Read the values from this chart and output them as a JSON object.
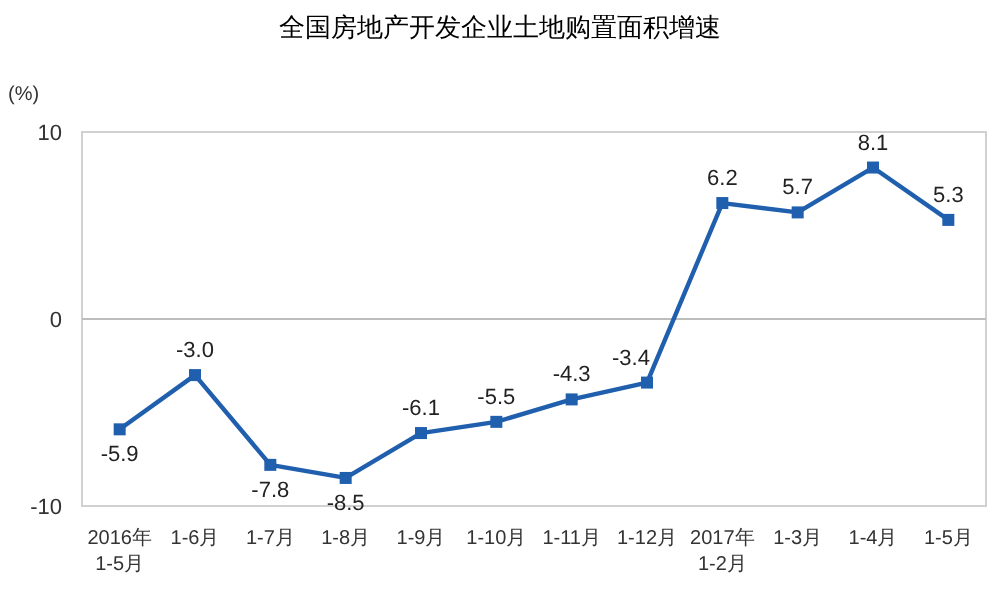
{
  "chart_data": {
    "type": "line",
    "title": "全国房地产开发企业土地购置面积增速",
    "ylabel": "(%)",
    "categories": [
      "2016年\n1-5月",
      "1-6月",
      "1-7月",
      "1-8月",
      "1-9月",
      "1-10月",
      "1-11月",
      "1-12月",
      "2017年\n1-2月",
      "1-3月",
      "1-4月",
      "1-5月"
    ],
    "series": [
      {
        "color": "#1f5fad",
        "values": [
          -5.9,
          -3.0,
          -7.8,
          -8.5,
          -6.1,
          -5.5,
          -4.3,
          -3.4,
          6.2,
          5.7,
          8.1,
          5.3
        ],
        "value_labels": [
          "-5.9",
          "-3.0",
          "-7.8",
          "-8.5",
          "-6.1",
          "-5.5",
          "-4.3",
          "-3.4",
          "6.2",
          "5.7",
          "8.1",
          "5.3"
        ]
      }
    ],
    "ylim": [
      -10,
      10
    ],
    "yticks": [
      -10,
      0,
      10
    ],
    "marker": "square"
  }
}
